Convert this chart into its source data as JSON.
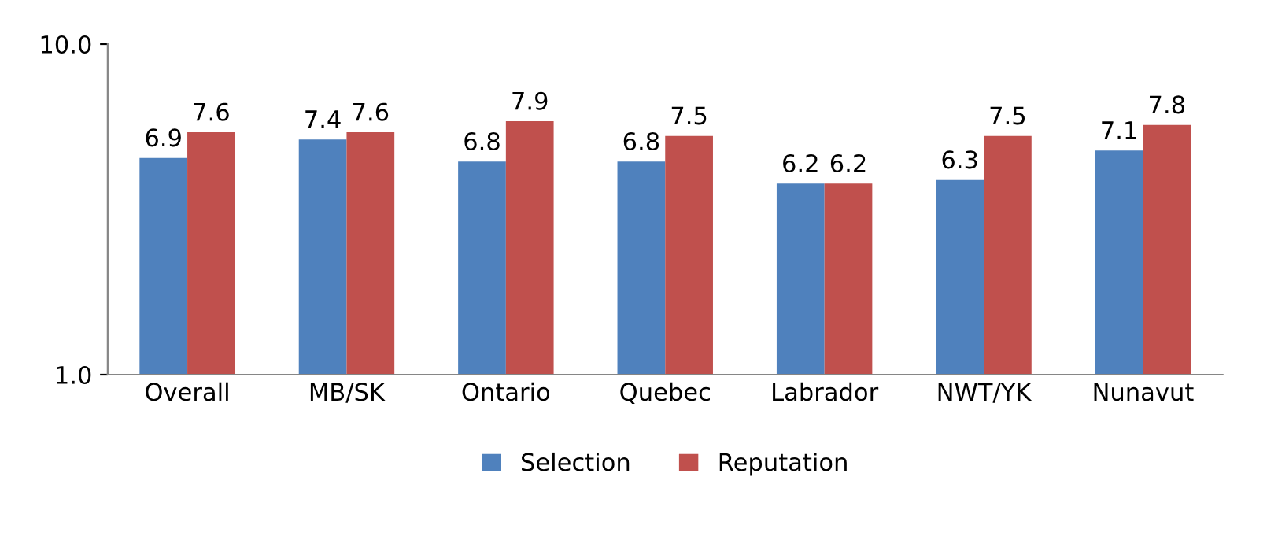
{
  "chart_data": {
    "type": "bar",
    "categories": [
      "Overall",
      "MB/SK",
      "Ontario",
      "Quebec",
      "Labrador",
      "NWT/YK",
      "Nunavut"
    ],
    "series": [
      {
        "name": "Selection",
        "color": "#4f81bd",
        "values": [
          6.9,
          7.4,
          6.8,
          6.8,
          6.2,
          6.3,
          7.1
        ]
      },
      {
        "name": "Reputation",
        "color": "#c0504d",
        "values": [
          7.6,
          7.6,
          7.9,
          7.5,
          6.2,
          7.5,
          7.8
        ]
      }
    ],
    "ylim": [
      1,
      10
    ],
    "yticks": [
      {
        "value": 1,
        "label": "1.0"
      },
      {
        "value": 10,
        "label": "10.0"
      }
    ],
    "data_labels": true,
    "legend": "bottom",
    "grid": false
  }
}
